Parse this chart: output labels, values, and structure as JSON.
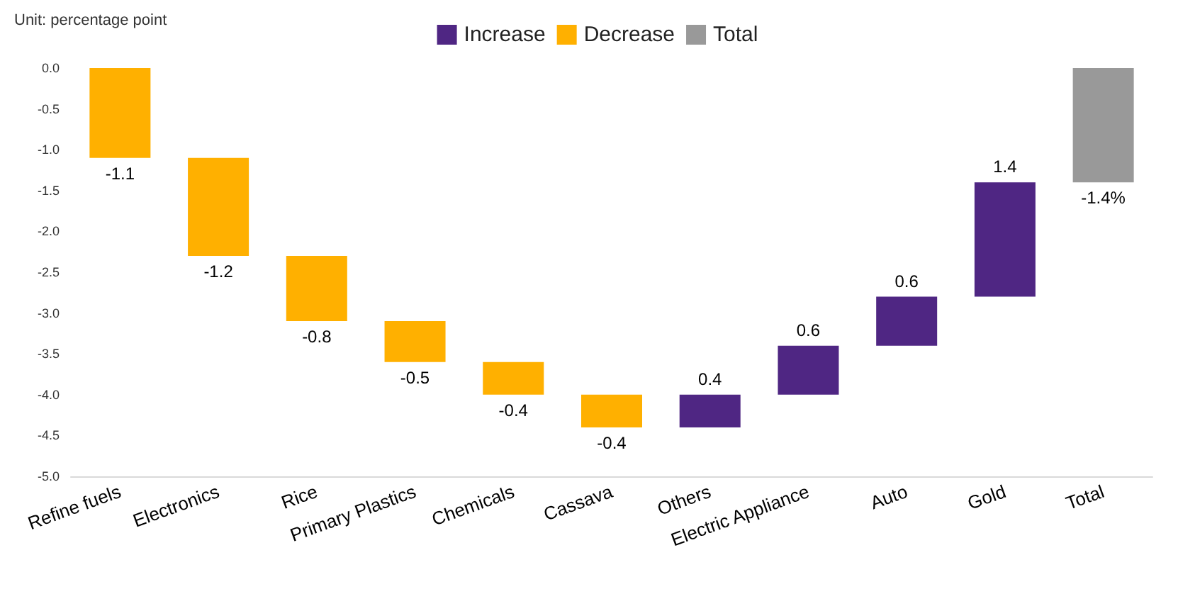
{
  "chart_data": {
    "type": "bar",
    "annotations": [
      "Unit: percentage point"
    ],
    "categories": [
      "Refine fuels",
      "Electronics",
      "Rice",
      "Primary Plastics",
      "Chemicals",
      "Cassava",
      "Others",
      "Electric Appliance",
      "Auto",
      "Gold",
      "Total"
    ],
    "series": [
      {
        "name": "Increase",
        "color": "#4f2683",
        "base": [
          null,
          null,
          null,
          null,
          null,
          null,
          -4.4,
          -4.0,
          -3.4,
          -2.8,
          null
        ],
        "values": [
          null,
          null,
          null,
          null,
          null,
          null,
          0.4,
          0.6,
          0.6,
          1.4,
          null
        ],
        "value_labels": [
          null,
          null,
          null,
          null,
          null,
          null,
          "0.4",
          "0.6",
          "0.6",
          "1.4",
          null
        ]
      },
      {
        "name": "Decrease",
        "color": "#ffb000",
        "base": [
          0,
          -1.1,
          -2.3,
          -3.1,
          -3.6,
          -4.0,
          null,
          null,
          null,
          null,
          null
        ],
        "values": [
          -1.1,
          -1.2,
          -0.8,
          -0.5,
          -0.4,
          -0.4,
          null,
          null,
          null,
          null,
          null
        ],
        "value_labels": [
          "-1.1",
          "-1.2",
          "-0.8",
          "-0.5",
          "-0.4",
          "-0.4",
          null,
          null,
          null,
          null,
          null
        ]
      },
      {
        "name": "Total",
        "color": "#999999",
        "base": [
          null,
          null,
          null,
          null,
          null,
          null,
          null,
          null,
          null,
          null,
          0
        ],
        "values": [
          null,
          null,
          null,
          null,
          null,
          null,
          null,
          null,
          null,
          null,
          -1.4
        ],
        "value_labels": [
          null,
          null,
          null,
          null,
          null,
          null,
          null,
          null,
          null,
          null,
          "-1.4%"
        ]
      }
    ],
    "ylim": [
      -5,
      0
    ],
    "yticks": [
      {
        "value": -5,
        "label": "-5.0"
      },
      {
        "value": -4.5,
        "label": "-4.5"
      },
      {
        "value": -4,
        "label": "-4.0"
      },
      {
        "value": -3.5,
        "label": "-3.5"
      },
      {
        "value": -3,
        "label": "-3.0"
      },
      {
        "value": -2.5,
        "label": "-2.5"
      },
      {
        "value": -2,
        "label": "-2.0"
      },
      {
        "value": -1.5,
        "label": "-1.5"
      },
      {
        "value": -1,
        "label": "-1.0"
      },
      {
        "value": -0.5,
        "label": "-0.5"
      },
      {
        "value": 0,
        "label": "0.0"
      }
    ],
    "grid": false,
    "legend": "top"
  }
}
